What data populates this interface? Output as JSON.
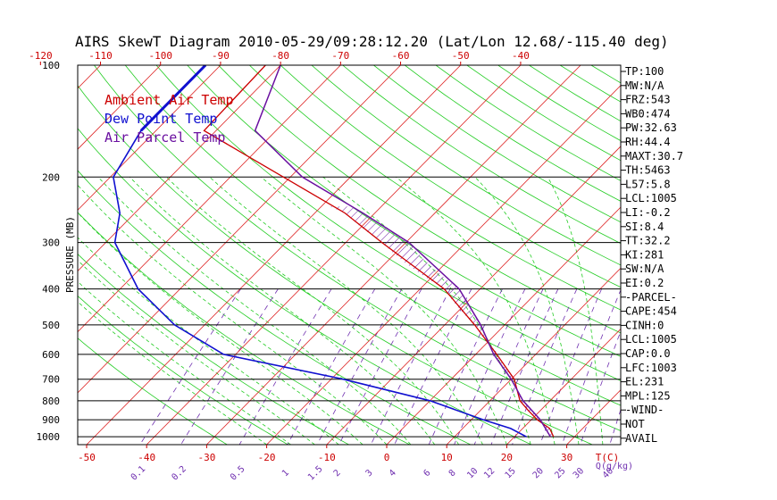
{
  "title": "AIRS SkewT Diagram 2010-05-29/09:28:12.20 (Lat/Lon 12.68/-115.40 deg)",
  "legend": [
    {
      "label": "Ambient Air Temp",
      "color": "#cc0000"
    },
    {
      "label": "Dew Point Temp",
      "color": "#1010d0"
    },
    {
      "label": "Air Parcel Temp",
      "color": "#6a10a0"
    }
  ],
  "chart_data": {
    "type": "line",
    "chart_kind": "skew-T log-P",
    "title": "AIRS SkewT Diagram 2010-05-29/09:28:12.20 (Lat/Lon 12.68/-115.40 deg)",
    "ylabel": "PRESSURE (MB)",
    "y_scale": "log",
    "ylim": [
      1050,
      100
    ],
    "pressure_ticks": [
      "100",
      "200",
      "300",
      "400",
      "500",
      "600",
      "700",
      "800",
      "900",
      "1000"
    ],
    "bottom_temp_ticks": [
      "-50",
      "-40",
      "-30",
      "-20",
      "-10",
      "0",
      "10",
      "20",
      "30"
    ],
    "bottom_temp_unit": "T(C)",
    "top_temp_ticks": [
      "-120",
      "-110",
      "-100",
      "-90",
      "-80",
      "-70",
      "-60",
      "-50",
      "-40"
    ],
    "mixing_ratio_ticks": [
      "0.1",
      "0.2",
      "0.5",
      "1",
      "1.5",
      "2",
      "3",
      "4",
      "6",
      "8",
      "10",
      "12",
      "15",
      "20",
      "25",
      "30",
      "40"
    ],
    "mixing_ratio_unit": "Q(g/kg)",
    "grid": true,
    "legend_position": "top-left",
    "series": [
      {
        "name": "Ambient Air Temp",
        "color": "#cc0000",
        "points": [
          [
            100,
            -82.5
          ],
          [
            150,
            -82.0
          ],
          [
            250,
            -45.0
          ],
          [
            300,
            -34.0
          ],
          [
            400,
            -16.0
          ],
          [
            500,
            -5.0
          ],
          [
            600,
            3.5
          ],
          [
            700,
            10.5
          ],
          [
            800,
            15.0
          ],
          [
            850,
            18.0
          ],
          [
            900,
            21.0
          ],
          [
            950,
            24.5
          ],
          [
            1000,
            26.5
          ]
        ]
      },
      {
        "name": "Dew Point Temp",
        "color": "#1010d0",
        "points": [
          [
            100,
            -92.5
          ],
          [
            150,
            -92.5
          ],
          [
            200,
            -89.5
          ],
          [
            250,
            -82.5
          ],
          [
            300,
            -78.5
          ],
          [
            400,
            -67.0
          ],
          [
            500,
            -55.0
          ],
          [
            600,
            -42.0
          ],
          [
            700,
            -18.0
          ],
          [
            800,
            0.0
          ],
          [
            900,
            12.0
          ],
          [
            950,
            18.0
          ],
          [
            1000,
            22.0
          ]
        ]
      },
      {
        "name": "Air Parcel Temp",
        "color": "#6a10a0",
        "points": [
          [
            100,
            -80.0
          ],
          [
            150,
            -73.5
          ],
          [
            200,
            -58.0
          ],
          [
            250,
            -42.0
          ],
          [
            300,
            -29.5
          ],
          [
            400,
            -13.5
          ],
          [
            500,
            -4.0
          ],
          [
            600,
            3.0
          ],
          [
            700,
            10.0
          ],
          [
            800,
            15.5
          ],
          [
            900,
            21.5
          ],
          [
            1000,
            26.0
          ]
        ]
      }
    ],
    "wind": "NOT AVAIL",
    "indices": [
      "TP:100",
      "MW:N/A",
      "FRZ:543",
      "WB0:474",
      "PW:32.63",
      "RH:44.4",
      "MAXT:30.7",
      "TH:5463",
      "L57:5.8",
      "LCL:1005",
      "LI:-0.2",
      "SI:8.4",
      "TT:32.2",
      "KI:281",
      "SW:N/A",
      "EI:0.2",
      "-PARCEL-",
      "CAPE:454",
      "CINH:0",
      "LCL:1005",
      "CAP:0.0",
      "LFC:1003",
      "EL:231",
      "MPL:125",
      "-WIND-",
      "NOT",
      "AVAIL"
    ]
  }
}
